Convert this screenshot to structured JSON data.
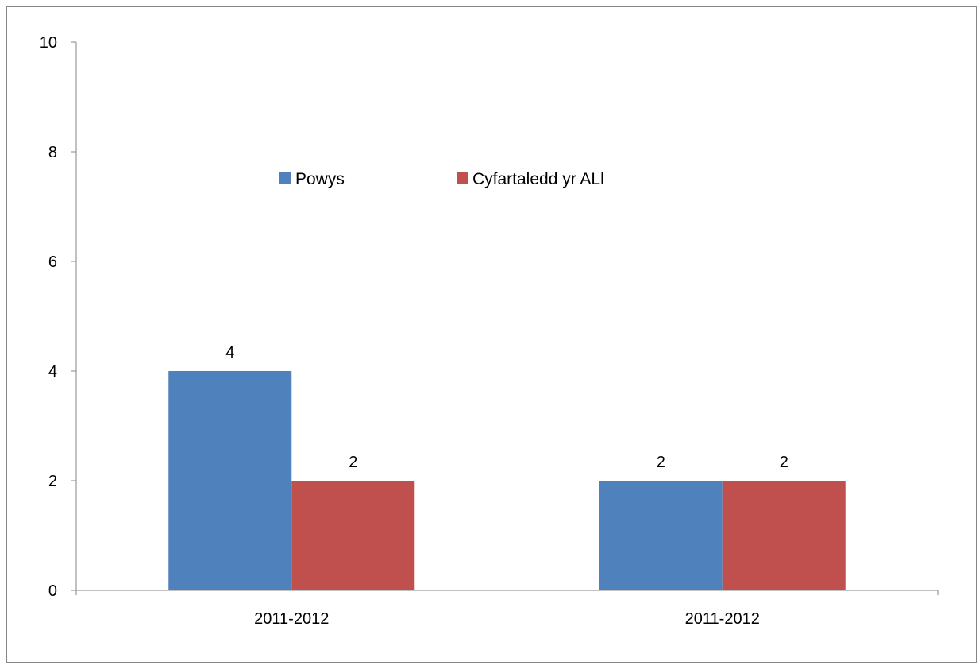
{
  "chart_data": {
    "type": "bar",
    "categories": [
      "2011-2012",
      "2011-2012"
    ],
    "series": [
      {
        "name": "Powys",
        "values": [
          4,
          2
        ],
        "color": "#4F81BD"
      },
      {
        "name": "Cyfartaledd yr ALl",
        "values": [
          2,
          2
        ],
        "color": "#C0504D"
      }
    ],
    "title": "",
    "xlabel": "",
    "ylabel": "",
    "ylim": [
      0,
      10
    ],
    "yticks": [
      0,
      2,
      4,
      6,
      8,
      10
    ],
    "grid": false,
    "legend_position": "top-center",
    "data_labels": true
  }
}
